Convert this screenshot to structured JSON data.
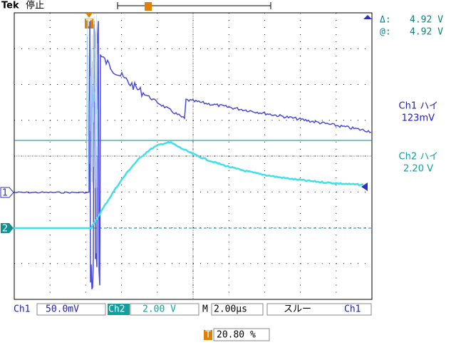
{
  "header": {
    "brand": "Tek",
    "status": "停止"
  },
  "cursor_readout": {
    "delta_label": "Δ:",
    "delta": "4.92 V",
    "at_label": "@:",
    "at": "4.92 V"
  },
  "measurements": [
    {
      "label": "Ch1 ハイ",
      "value": "123mV"
    },
    {
      "label": "Ch2 ハイ",
      "value": "2.20 V"
    }
  ],
  "markers": {
    "ch1": "1",
    "ch2": "2",
    "trigger": "T"
  },
  "footer": {
    "ch1_label": "Ch1",
    "ch1_scale": "50.0mV",
    "ch2_label": "Ch2",
    "ch2_scale": "2.00 V",
    "time_label": "M",
    "time_scale": "2.00µs",
    "trigger_slope": "スルー",
    "trigger_source": "Ch1",
    "trigger_pos_icon": "T",
    "trigger_pos": "20.80 %"
  }
}
